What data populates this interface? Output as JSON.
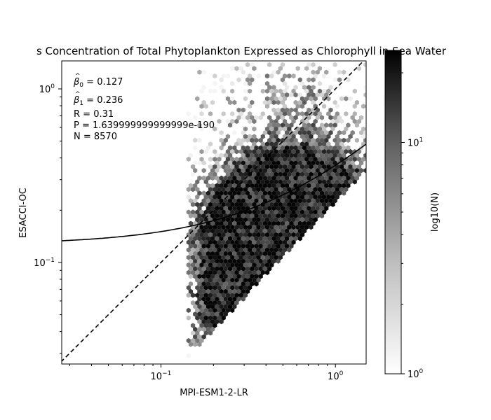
{
  "chart_data": {
    "type": "hexbin",
    "title": "s Concentration of Total Phytoplankton Expressed as Chlorophyll in Sea Water",
    "xlabel": "MPI-ESM1-2-LR",
    "ylabel": "ESACCI-OC",
    "xscale": "log",
    "yscale": "log",
    "xlim": [
      0.027,
      1.5
    ],
    "ylim": [
      0.026,
      1.45
    ],
    "x_ticks": [
      {
        "value": 0.1,
        "base": "10",
        "exp": "−1"
      },
      {
        "value": 1,
        "base": "10",
        "exp": "0"
      }
    ],
    "y_ticks": [
      {
        "value": 0.1,
        "base": "10",
        "exp": "−1"
      },
      {
        "value": 1,
        "base": "10",
        "exp": "0"
      }
    ],
    "stats": {
      "beta0": {
        "sym": "β",
        "sub": "0",
        "text": " = 0.127"
      },
      "beta1": {
        "sym": "β",
        "sub": "1",
        "text": " = 0.236"
      },
      "r": "R = 0.31",
      "p": "P = 1.639999999999999e-190",
      "n": "N = 8570"
    },
    "fit": {
      "beta0": 0.127,
      "beta1": 0.236
    },
    "identity_line": true,
    "colorbar": {
      "label": "log10(N)",
      "range": [
        1,
        25
      ],
      "ticks": [
        {
          "value": 1,
          "base": "10",
          "exp": "0"
        },
        {
          "value": 10,
          "base": "10",
          "exp": "1"
        }
      ],
      "colormap": "greys"
    },
    "density_clusters": [
      {
        "x": 0.45,
        "y": 0.17,
        "sx": 0.28,
        "sy": 0.22,
        "w": 1.0
      },
      {
        "x": 0.8,
        "y": 0.2,
        "sx": 0.25,
        "sy": 0.2,
        "w": 0.8
      },
      {
        "x": 0.3,
        "y": 0.075,
        "sx": 0.2,
        "sy": 0.35,
        "w": 0.6
      },
      {
        "x": 0.6,
        "y": 0.5,
        "sx": 0.3,
        "sy": 0.45,
        "w": 0.35
      },
      {
        "x": 0.22,
        "y": 0.05,
        "sx": 0.15,
        "sy": 0.25,
        "w": 0.4
      }
    ]
  }
}
